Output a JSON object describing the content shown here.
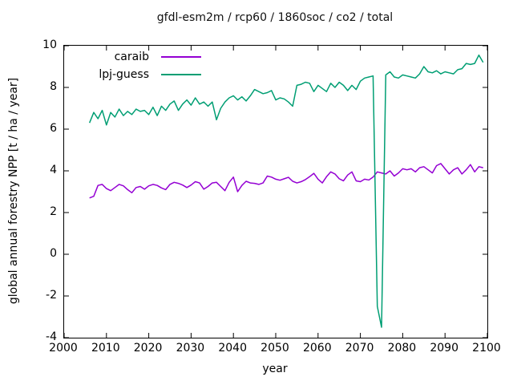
{
  "figure": {
    "background": "#ffffff",
    "axis_color": "#000000",
    "text_color": "#000000"
  },
  "chart_data": {
    "type": "line",
    "title": "gfdl-esm2m / rcp60 / 1860soc / co2 / total",
    "xlabel": "year",
    "ylabel": "global annual forestry NPP [t / ha / year]",
    "xlim": [
      2000,
      2100
    ],
    "ylim": [
      -4,
      10
    ],
    "xticks": [
      2000,
      2010,
      2020,
      2030,
      2040,
      2050,
      2060,
      2070,
      2080,
      2090,
      2100
    ],
    "yticks": [
      -4,
      -2,
      0,
      2,
      4,
      6,
      8,
      10
    ],
    "grid": false,
    "legend_position": "top-left-inside",
    "x_start": 2006,
    "x_step": 1,
    "series": [
      {
        "name": "caraib",
        "color": "#9400d3",
        "values": [
          2.7,
          2.78,
          3.3,
          3.35,
          3.15,
          3.05,
          3.2,
          3.35,
          3.28,
          3.1,
          2.95,
          3.2,
          3.25,
          3.12,
          3.28,
          3.35,
          3.3,
          3.18,
          3.1,
          3.35,
          3.45,
          3.4,
          3.32,
          3.2,
          3.32,
          3.48,
          3.42,
          3.12,
          3.25,
          3.42,
          3.45,
          3.25,
          3.05,
          3.45,
          3.7,
          3.0,
          3.3,
          3.5,
          3.42,
          3.4,
          3.35,
          3.42,
          3.75,
          3.7,
          3.6,
          3.55,
          3.62,
          3.69,
          3.5,
          3.42,
          3.48,
          3.58,
          3.72,
          3.88,
          3.6,
          3.42,
          3.72,
          3.95,
          3.85,
          3.62,
          3.52,
          3.8,
          3.95,
          3.52,
          3.48,
          3.6,
          3.56,
          3.7,
          3.95,
          3.9,
          3.85,
          4.0,
          3.75,
          3.9,
          4.1,
          4.05,
          4.1,
          3.95,
          4.15,
          4.2,
          4.05,
          3.9,
          4.25,
          4.35,
          4.1,
          3.85,
          4.05,
          4.15,
          3.85,
          4.05,
          4.3,
          3.95,
          4.2,
          4.15
        ]
      },
      {
        "name": "lpj-guess",
        "color": "#009e73",
        "values": [
          6.3,
          6.8,
          6.5,
          6.9,
          6.2,
          6.8,
          6.58,
          6.96,
          6.65,
          6.85,
          6.7,
          6.96,
          6.85,
          6.9,
          6.7,
          7.05,
          6.65,
          7.1,
          6.9,
          7.2,
          7.35,
          6.9,
          7.2,
          7.4,
          7.15,
          7.5,
          7.2,
          7.3,
          7.1,
          7.3,
          6.45,
          7.0,
          7.3,
          7.5,
          7.6,
          7.4,
          7.55,
          7.35,
          7.6,
          7.9,
          7.8,
          7.7,
          7.75,
          7.85,
          7.4,
          7.5,
          7.45,
          7.3,
          7.1,
          8.1,
          8.15,
          8.25,
          8.2,
          7.8,
          8.1,
          7.95,
          7.8,
          8.2,
          8.0,
          8.25,
          8.1,
          7.85,
          8.1,
          7.9,
          8.3,
          8.45,
          8.5,
          8.55,
          -2.5,
          -3.5,
          8.6,
          8.75,
          8.5,
          8.45,
          8.6,
          8.55,
          8.5,
          8.45,
          8.65,
          9.0,
          8.75,
          8.7,
          8.8,
          8.65,
          8.75,
          8.7,
          8.65,
          8.85,
          8.9,
          9.15,
          9.1,
          9.15,
          9.55,
          9.2
        ]
      }
    ]
  }
}
